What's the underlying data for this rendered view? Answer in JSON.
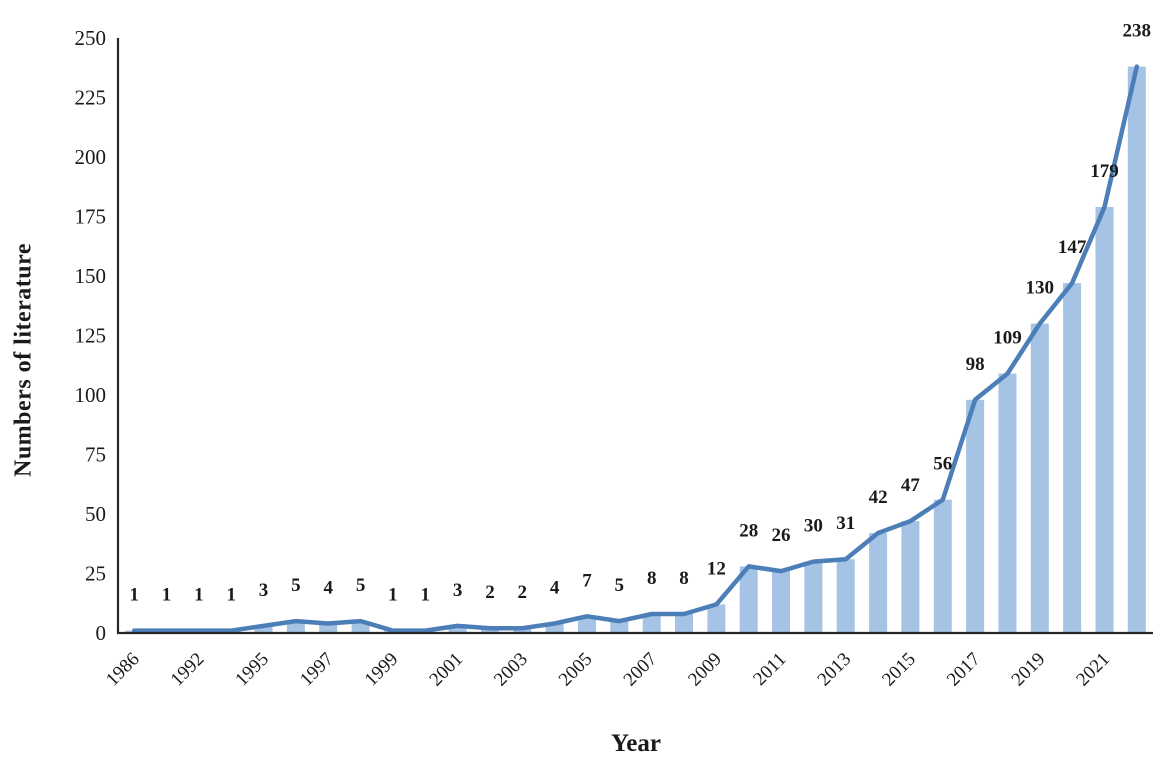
{
  "colors": {
    "bar_fill": "#a5c3e5",
    "line": "#4c7eb8",
    "axis": "#262626",
    "text": "#1a1a1a",
    "background": "#ffffff"
  },
  "chart_data": {
    "type": "bar+line",
    "title": "",
    "xlabel": "Year",
    "ylabel": "Numbers of literature",
    "values": [
      1,
      1,
      1,
      1,
      3,
      5,
      4,
      5,
      1,
      1,
      3,
      2,
      2,
      4,
      7,
      5,
      8,
      8,
      12,
      28,
      26,
      30,
      31,
      42,
      47,
      56,
      98,
      109,
      130,
      147,
      179,
      238
    ],
    "data_labels": [
      "1",
      "1",
      "1",
      "1",
      "3",
      "5",
      "4",
      "5",
      "1",
      "1",
      "3",
      "2",
      "2",
      "4",
      "7",
      "5",
      "8",
      "8",
      "12",
      "28",
      "26",
      "30",
      "31",
      "42",
      "47",
      "56",
      "98",
      "109",
      "130",
      "147",
      "179",
      "238"
    ],
    "x_tick_labels": [
      "1986",
      "1992",
      "1995",
      "1997",
      "1999",
      "2001",
      "2003",
      "2005",
      "2007",
      "2009",
      "2011",
      "2013",
      "2015",
      "2017",
      "2019",
      "2021"
    ],
    "x_tick_every": 2,
    "yticks": [
      0,
      25,
      50,
      75,
      100,
      125,
      150,
      175,
      200,
      225,
      250
    ],
    "ylim": [
      0,
      250
    ],
    "grid": false,
    "legend": "none",
    "data_labels_shown": true
  }
}
